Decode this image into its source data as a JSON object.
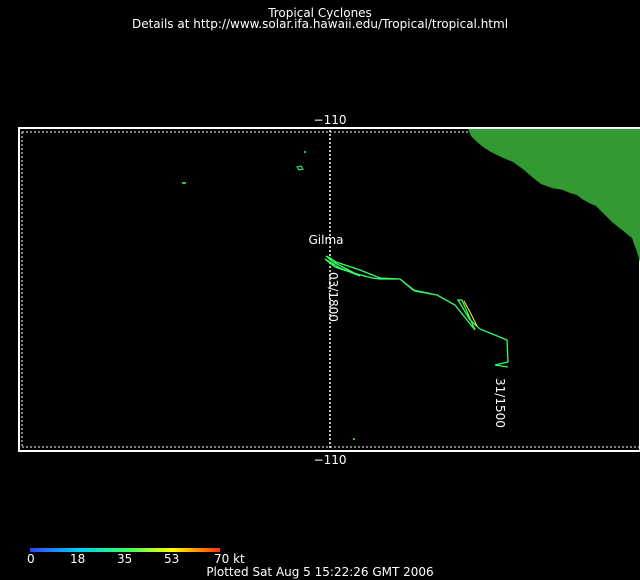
{
  "header": {
    "title": "Tropical Cyclones",
    "details": "Details at http://www.solar.ifa.hawaii.edu/Tropical/tropical.html"
  },
  "map": {
    "longitude_label_top": "−110",
    "longitude_label_bottom": "−110",
    "storm": {
      "name": "Gilma",
      "track_color": "#33ff66",
      "time_labels": [
        "03/1800",
        "31/1500"
      ]
    },
    "land_color": "#339933",
    "ocean_color": "#000000"
  },
  "colorbar": {
    "ticks": [
      "0",
      "18",
      "35",
      "53",
      "70 kt"
    ],
    "colors": [
      "#3344ff",
      "#00ccff",
      "#33ff66",
      "#ffff00",
      "#ff3300"
    ]
  },
  "footer": {
    "plotted": "Plotted Sat Aug 5 15:22:26 GMT 2006"
  }
}
